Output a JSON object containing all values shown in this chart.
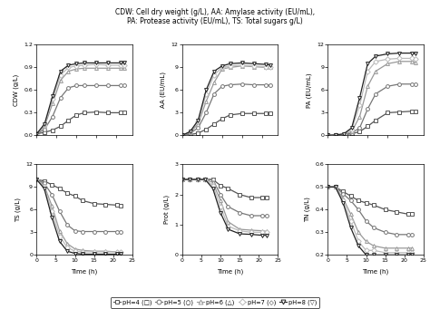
{
  "title": "CDW: Cell dry weight (g/L), AA: Amylase activity (EU/mL),\nPA: Protease activity (EU/mL), TS: Total sugars g/L)",
  "time": [
    0,
    2,
    4,
    6,
    8,
    10,
    12,
    15,
    18,
    21,
    22
  ],
  "CDW": {
    "pH4": [
      0.02,
      0.04,
      0.07,
      0.12,
      0.2,
      0.27,
      0.3,
      0.31,
      0.3,
      0.3,
      0.3
    ],
    "pH5": [
      0.02,
      0.08,
      0.25,
      0.5,
      0.63,
      0.66,
      0.66,
      0.66,
      0.66,
      0.66,
      0.66
    ],
    "pH6": [
      0.02,
      0.12,
      0.42,
      0.73,
      0.85,
      0.88,
      0.89,
      0.89,
      0.89,
      0.89,
      0.89
    ],
    "pH7": [
      0.02,
      0.14,
      0.48,
      0.8,
      0.9,
      0.92,
      0.93,
      0.94,
      0.93,
      0.93,
      0.93
    ],
    "pH8": [
      0.02,
      0.15,
      0.52,
      0.85,
      0.93,
      0.95,
      0.96,
      0.96,
      0.96,
      0.96,
      0.96
    ]
  },
  "AA": {
    "pH4": [
      0.0,
      0.1,
      0.3,
      0.8,
      1.5,
      2.2,
      2.7,
      2.9,
      2.9,
      2.9,
      2.9
    ],
    "pH5": [
      0.0,
      0.3,
      1.0,
      3.0,
      5.5,
      6.5,
      6.7,
      6.8,
      6.7,
      6.7,
      6.7
    ],
    "pH6": [
      0.0,
      0.4,
      1.5,
      4.5,
      7.0,
      8.8,
      9.0,
      9.2,
      9.1,
      9.0,
      9.0
    ],
    "pH7": [
      0.0,
      0.5,
      1.8,
      5.5,
      8.0,
      9.0,
      9.2,
      9.3,
      9.2,
      9.1,
      9.0
    ],
    "pH8": [
      0.0,
      0.5,
      2.0,
      6.0,
      8.5,
      9.2,
      9.5,
      9.6,
      9.5,
      9.4,
      9.3
    ]
  },
  "PA": {
    "pH4": [
      0.0,
      0.05,
      0.1,
      0.2,
      0.5,
      1.2,
      2.0,
      3.0,
      3.1,
      3.2,
      3.2
    ],
    "pH5": [
      0.0,
      0.05,
      0.1,
      0.3,
      1.0,
      3.5,
      5.5,
      6.5,
      6.8,
      6.8,
      6.8
    ],
    "pH6": [
      0.0,
      0.05,
      0.15,
      0.5,
      2.5,
      6.5,
      8.5,
      9.5,
      9.8,
      9.8,
      9.7
    ],
    "pH7": [
      0.0,
      0.05,
      0.2,
      0.8,
      4.0,
      8.5,
      9.8,
      10.1,
      10.2,
      10.2,
      10.1
    ],
    "pH8": [
      0.0,
      0.05,
      0.2,
      1.0,
      5.0,
      9.5,
      10.5,
      10.8,
      10.9,
      10.9,
      10.8
    ]
  },
  "TS": {
    "pH4": [
      10.0,
      9.8,
      9.3,
      8.8,
      8.2,
      7.8,
      7.2,
      6.8,
      6.7,
      6.6,
      6.5
    ],
    "pH5": [
      10.0,
      9.5,
      8.0,
      5.8,
      4.0,
      3.2,
      3.1,
      3.1,
      3.1,
      3.1,
      3.1
    ],
    "pH6": [
      10.0,
      9.2,
      6.5,
      3.2,
      1.5,
      0.8,
      0.6,
      0.5,
      0.5,
      0.4,
      0.4
    ],
    "pH7": [
      10.0,
      9.0,
      5.8,
      2.5,
      1.0,
      0.5,
      0.4,
      0.4,
      0.4,
      0.4,
      0.4
    ],
    "pH8": [
      10.0,
      8.8,
      5.0,
      1.8,
      0.5,
      0.2,
      0.1,
      0.1,
      0.1,
      0.1,
      0.1
    ]
  },
  "Prot": {
    "pH4": [
      2.5,
      2.5,
      2.5,
      2.5,
      2.5,
      2.3,
      2.2,
      2.0,
      1.9,
      1.9,
      1.9
    ],
    "pH5": [
      2.5,
      2.5,
      2.5,
      2.5,
      2.5,
      2.0,
      1.6,
      1.4,
      1.3,
      1.3,
      1.3
    ],
    "pH6": [
      2.5,
      2.5,
      2.5,
      2.5,
      2.4,
      1.8,
      1.1,
      0.85,
      0.82,
      0.8,
      0.78
    ],
    "pH7": [
      2.5,
      2.5,
      2.5,
      2.5,
      2.3,
      1.6,
      0.95,
      0.8,
      0.75,
      0.75,
      0.75
    ],
    "pH8": [
      2.5,
      2.5,
      2.5,
      2.5,
      2.2,
      1.4,
      0.85,
      0.7,
      0.68,
      0.65,
      0.65
    ]
  },
  "TN": {
    "pH4": [
      0.5,
      0.5,
      0.48,
      0.46,
      0.44,
      0.43,
      0.42,
      0.4,
      0.39,
      0.38,
      0.38
    ],
    "pH5": [
      0.5,
      0.5,
      0.47,
      0.44,
      0.4,
      0.35,
      0.32,
      0.3,
      0.29,
      0.29,
      0.29
    ],
    "pH6": [
      0.5,
      0.5,
      0.45,
      0.38,
      0.3,
      0.26,
      0.24,
      0.23,
      0.23,
      0.23,
      0.23
    ],
    "pH7": [
      0.5,
      0.5,
      0.44,
      0.35,
      0.26,
      0.22,
      0.22,
      0.21,
      0.21,
      0.21,
      0.21
    ],
    "pH8": [
      0.5,
      0.5,
      0.43,
      0.32,
      0.24,
      0.2,
      0.2,
      0.2,
      0.2,
      0.2,
      0.2
    ]
  },
  "markers": {
    "pH4": "s",
    "pH5": "o",
    "pH6": "^",
    "pH7": "D",
    "pH8": "v"
  },
  "colors": {
    "pH4": "#555555",
    "pH5": "#777777",
    "pH6": "#999999",
    "pH7": "#bbbbbb",
    "pH8": "#222222"
  },
  "linewidths": {
    "pH4": 0.9,
    "pH5": 0.9,
    "pH6": 0.9,
    "pH7": 0.9,
    "pH8": 0.9
  }
}
